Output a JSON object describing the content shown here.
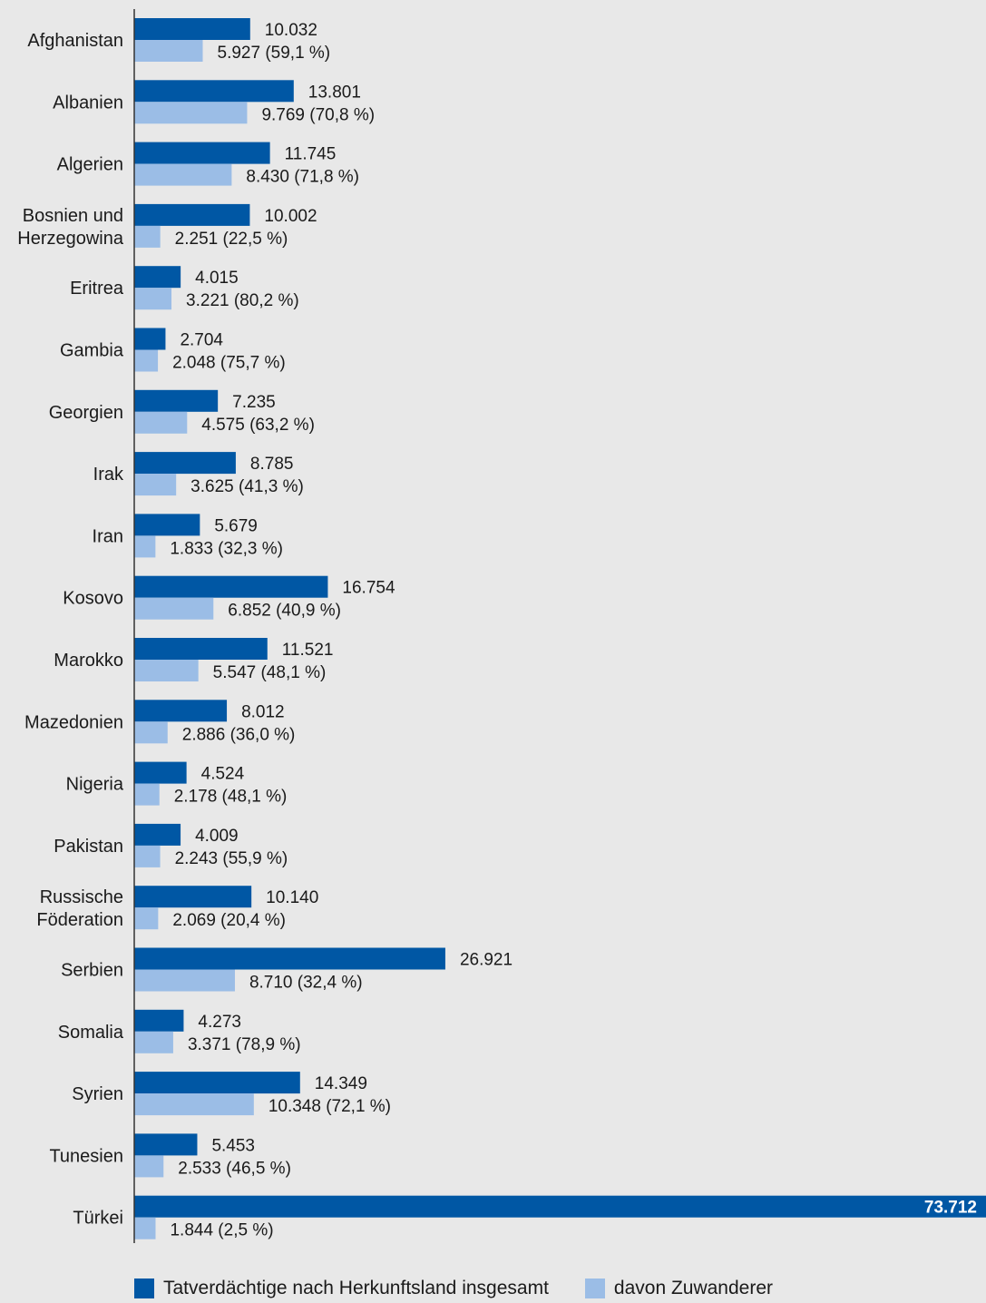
{
  "colors": {
    "total": "#0057a4",
    "zuwanderer": "#9bbde6",
    "axis": "#333333",
    "background": "#e8e8e8"
  },
  "chart_data": {
    "type": "bar",
    "orientation": "horizontal",
    "categories": [
      [
        "Afghanistan"
      ],
      [
        "Albanien"
      ],
      [
        "Algerien"
      ],
      [
        "Bosnien und",
        "Herzegowina"
      ],
      [
        "Eritrea"
      ],
      [
        "Gambia"
      ],
      [
        "Georgien"
      ],
      [
        "Irak"
      ],
      [
        "Iran"
      ],
      [
        "Kosovo"
      ],
      [
        "Marokko"
      ],
      [
        "Mazedonien"
      ],
      [
        "Nigeria"
      ],
      [
        "Pakistan"
      ],
      [
        "Russische",
        "Föderation"
      ],
      [
        "Serbien"
      ],
      [
        "Somalia"
      ],
      [
        "Syrien"
      ],
      [
        "Tunesien"
      ],
      [
        "Türkei"
      ]
    ],
    "series": [
      {
        "name": "Tatverdächtige nach Herkunftsland insgesamt",
        "values": [
          10032,
          13801,
          11745,
          10002,
          4015,
          2704,
          7235,
          8785,
          5679,
          16754,
          11521,
          8012,
          4524,
          4009,
          10140,
          26921,
          4273,
          14349,
          5453,
          73712
        ],
        "labels": [
          "10.032",
          "13.801",
          "11.745",
          "10.002",
          "4.015",
          "2.704",
          "7.235",
          "8.785",
          "5.679",
          "16.754",
          "11.521",
          "8.012",
          "4.524",
          "4.009",
          "10.140",
          "26.921",
          "4.273",
          "14.349",
          "5.453",
          "73.712"
        ]
      },
      {
        "name": "davon Zuwanderer",
        "values": [
          5927,
          9769,
          8430,
          2251,
          3221,
          2048,
          4575,
          3625,
          1833,
          6852,
          5547,
          2886,
          2178,
          2243,
          2069,
          8710,
          3371,
          10348,
          2533,
          1844
        ],
        "labels": [
          "5.927 (59,1 %)",
          "9.769 (70,8 %)",
          "8.430 (71,8 %)",
          "2.251 (22,5 %)",
          "3.221 (80,2 %)",
          "2.048 (75,7 %)",
          "4.575 (63,2 %)",
          "3.625 (41,3 %)",
          "1.833 (32,3 %)",
          "6.852 (40,9 %)",
          "5.547 (48,1 %)",
          "2.886 (36,0 %)",
          "2.178 (48,1 %)",
          "2.243 (55,9 %)",
          "2.069 (20,4 %)",
          "8.710 (32,4 %)",
          "3.371 (78,9 %)",
          "10.348 (72,1 %)",
          "2.533 (46,5 %)",
          "1.844 (2,5 %)"
        ]
      }
    ],
    "xlim": [
      0,
      73712
    ],
    "grid": false,
    "legend_position": "bottom"
  },
  "legend": {
    "total": "Tatverdächtige nach Herkunftsland insgesamt",
    "zuwanderer": "davon Zuwanderer"
  }
}
